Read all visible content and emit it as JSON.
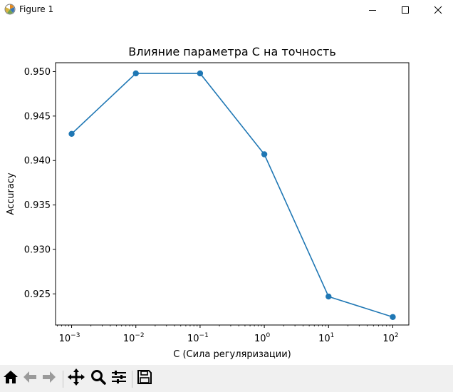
{
  "window": {
    "title": "Figure 1",
    "icons": {
      "app": "matplotlib-icon",
      "minimize": "minimize-icon",
      "maximize": "maximize-icon",
      "close": "close-icon"
    }
  },
  "chart_data": {
    "type": "line",
    "title": "Влияние параметра C на точность",
    "xlabel": "C (Сила регуляризации)",
    "ylabel": "Accuracy",
    "xscale": "log",
    "x": [
      0.001,
      0.01,
      0.1,
      1,
      10,
      100
    ],
    "xtick_labels": [
      {
        "base": "10",
        "exp": "−3"
      },
      {
        "base": "10",
        "exp": "−2"
      },
      {
        "base": "10",
        "exp": "−1"
      },
      {
        "base": "10",
        "exp": "0"
      },
      {
        "base": "10",
        "exp": "1"
      },
      {
        "base": "10",
        "exp": "2"
      }
    ],
    "series": [
      {
        "values": [
          0.943,
          0.9498,
          0.9498,
          0.9407,
          0.9247,
          0.9224
        ],
        "color": "#1f77b4",
        "marker": "circle"
      }
    ],
    "ylim": [
      0.9215,
      0.951
    ],
    "yticks": [
      0.925,
      0.93,
      0.935,
      0.94,
      0.945,
      0.95
    ],
    "ytick_labels": [
      "0.925",
      "0.930",
      "0.935",
      "0.940",
      "0.945",
      "0.950"
    ],
    "grid": false,
    "legend": "none"
  },
  "toolbar": {
    "buttons": [
      {
        "name": "home-button",
        "icon": "home-icon"
      },
      {
        "name": "back-button",
        "icon": "arrow-left-icon"
      },
      {
        "name": "forward-button",
        "icon": "arrow-right-icon"
      },
      {
        "name": "pan-button",
        "icon": "move-icon"
      },
      {
        "name": "zoom-button",
        "icon": "magnifier-icon"
      },
      {
        "name": "configure-subplots-button",
        "icon": "sliders-icon"
      },
      {
        "name": "save-button",
        "icon": "floppy-disk-icon"
      }
    ]
  }
}
